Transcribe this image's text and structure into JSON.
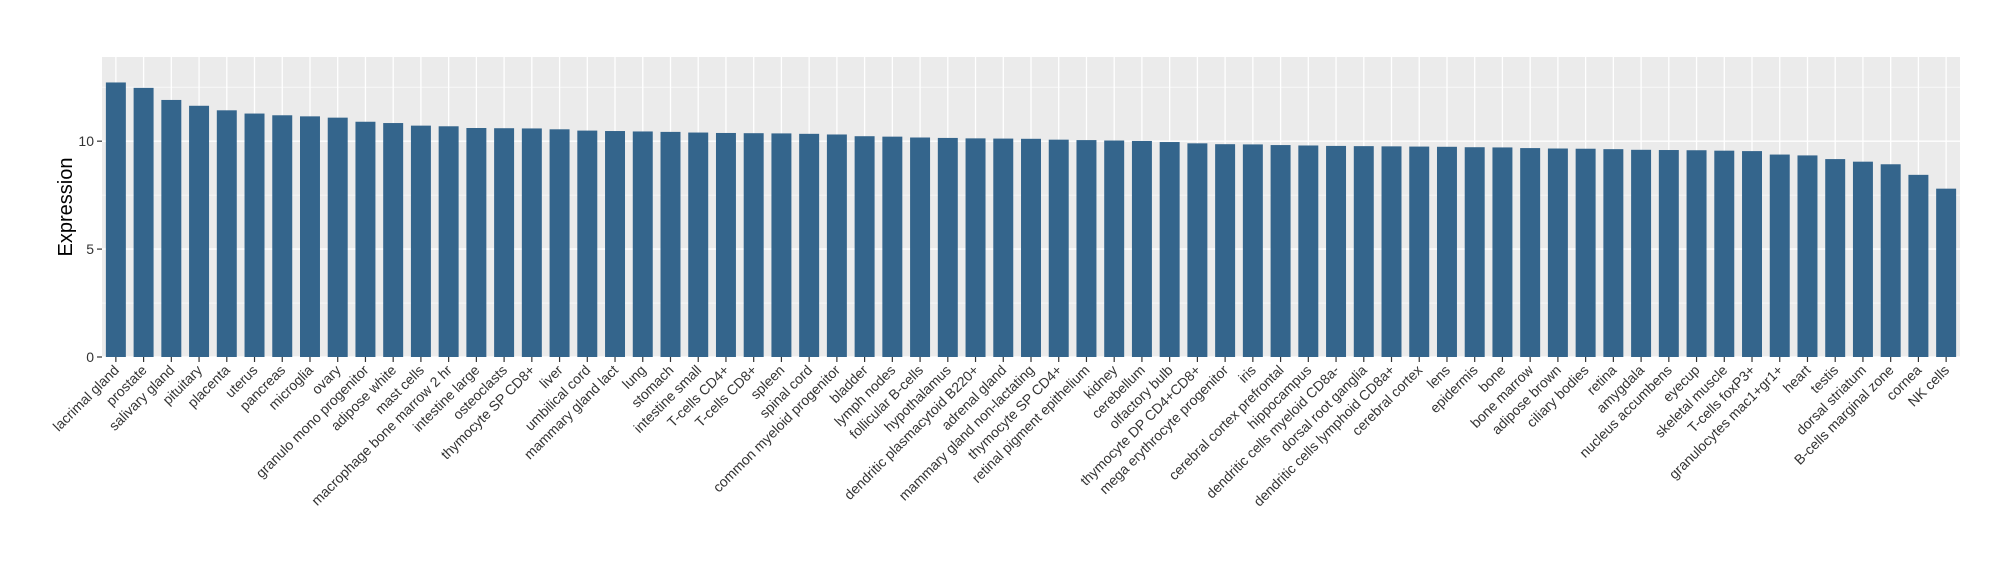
{
  "chart_data": {
    "type": "bar",
    "title": "",
    "xlabel": "",
    "ylabel": "Expression",
    "ylim": [
      0,
      13.9
    ],
    "yticks": [
      0,
      5,
      10
    ],
    "grid": true,
    "legend": "none",
    "bar_color": "#34658C",
    "panel_color": "#EBEBEB",
    "categories": [
      "lacrimal gland",
      "prostate",
      "salivary gland",
      "pituitary",
      "placenta",
      "uterus",
      "pancreas",
      "microglia",
      "ovary",
      "granulo mono progenitor",
      "adipose white",
      "mast cells",
      "macrophage bone marrow 2 hr",
      "intestine large",
      "osteoclasts",
      "thymocyte SP CD8+",
      "liver",
      "umbilical cord",
      "mammary gland lact",
      "lung",
      "stomach",
      "intestine small",
      "T-cells CD4+",
      "T-cells CD8+",
      "spleen",
      "spinal cord",
      "common myeloid progenitor",
      "bladder",
      "lymph nodes",
      "follicular B-cells",
      "hypothalamus",
      "dendritic plasmacytoid B220+",
      "adrenal gland",
      "mammary gland non-lactating",
      "thymocyte SP CD4+",
      "retinal pigment epithelium",
      "kidney",
      "cerebellum",
      "olfactory bulb",
      "thymocyte DP CD4+CD8+",
      "mega erythrocyte progenitor",
      "iris",
      "cerebral cortex prefrontal",
      "hippocampus",
      "dendritic cells myeloid CD8a-",
      "dorsal root ganglia",
      "dendritic cells lymphoid CD8a+",
      "cerebral cortex",
      "lens",
      "epidermis",
      "bone",
      "bone marrow",
      "adipose brown",
      "ciliary bodies",
      "retina",
      "amygdala",
      "nucleus accumbens",
      "eyecup",
      "skeletal muscle",
      "T-cells foxP3+",
      "granulocytes mac1+gr1+",
      "heart",
      "testis",
      "dorsal striatum",
      "B-cells marginal zone",
      "cornea",
      "NK cells"
    ],
    "values": [
      12.72,
      12.47,
      11.91,
      11.64,
      11.43,
      11.28,
      11.2,
      11.15,
      11.09,
      10.9,
      10.84,
      10.72,
      10.69,
      10.61,
      10.6,
      10.59,
      10.55,
      10.49,
      10.47,
      10.45,
      10.43,
      10.4,
      10.38,
      10.37,
      10.36,
      10.34,
      10.31,
      10.23,
      10.21,
      10.17,
      10.15,
      10.13,
      10.12,
      10.11,
      10.07,
      10.05,
      10.03,
      10.01,
      9.96,
      9.9,
      9.86,
      9.85,
      9.82,
      9.8,
      9.78,
      9.77,
      9.76,
      9.75,
      9.74,
      9.72,
      9.71,
      9.68,
      9.66,
      9.65,
      9.63,
      9.6,
      9.59,
      9.58,
      9.56,
      9.54,
      9.38,
      9.34,
      9.17,
      9.05,
      8.93,
      8.44,
      7.8
    ]
  }
}
